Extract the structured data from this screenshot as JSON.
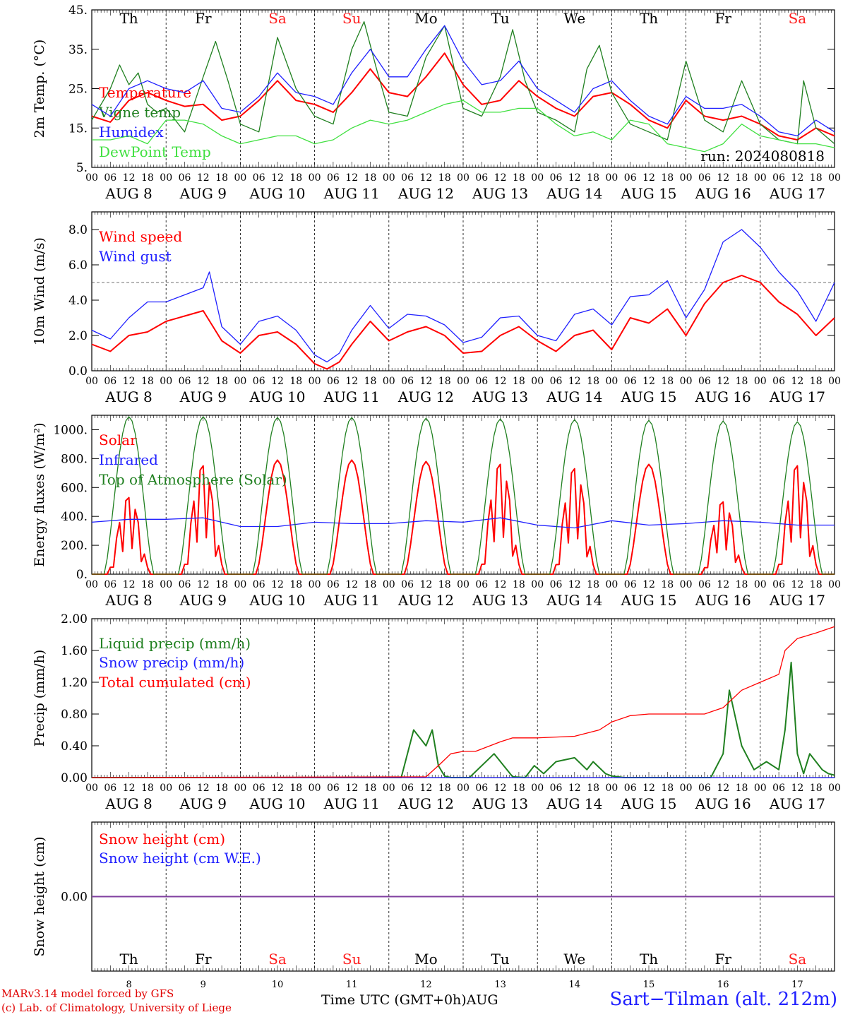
{
  "footer": {
    "credit_line1": "MARv3.14 model forced by GFS",
    "credit_line2": "(c) Lab. of Climatology, University of Liege",
    "time_axis_label": "Time UTC (GMT+0h)AUG",
    "station": "Sart−Tilman (alt. 212m)"
  },
  "run_label": "run: 2024080818",
  "weekdays": [
    "Th",
    "Fr",
    "Sa",
    "Su",
    "Mo",
    "Tu",
    "We",
    "Th",
    "Fr",
    "Sa"
  ],
  "weekend_color": "#ff2020",
  "date_labels": [
    "AUG  8",
    "AUG  9",
    "AUG 10",
    "AUG 11",
    "AUG 12",
    "AUG 13",
    "AUG 14",
    "AUG 15",
    "AUG 16",
    "AUG 17"
  ],
  "hour_ticks": [
    "00",
    "06",
    "12",
    "18"
  ],
  "bottom_days": [
    "8",
    "9",
    "10",
    "11",
    "12",
    "13",
    "14",
    "15",
    "16",
    "17"
  ],
  "colors": {
    "red": "#ff0000",
    "green": "#208020",
    "blue": "#2020ff",
    "lightgreen": "#40e040",
    "purple": "#8040a0"
  },
  "chart_data": [
    {
      "type": "line",
      "id": "temp",
      "ylabel": "2m Temp. (°C)",
      "ylim": [
        5,
        45
      ],
      "ytick_values": [
        5,
        15,
        25,
        35,
        45
      ],
      "ytick_labels": [
        "5.",
        "15.",
        "25.",
        "35.",
        "45."
      ],
      "x_unit": "hours since AUG 8 00 UTC",
      "series": [
        {
          "name": "Temperature",
          "color": "#ff0000",
          "x": [
            0,
            6,
            12,
            18,
            24,
            30,
            36,
            42,
            48,
            54,
            60,
            66,
            72,
            78,
            84,
            90,
            96,
            102,
            108,
            114,
            120,
            126,
            132,
            138,
            144,
            150,
            156,
            162,
            168,
            174,
            180,
            186,
            192,
            198,
            204,
            210,
            216,
            222,
            228,
            234,
            240
          ],
          "y": [
            18,
            16.5,
            22,
            24,
            22,
            20.5,
            21,
            17,
            18,
            22,
            27,
            22,
            21,
            19,
            24,
            30,
            24,
            23,
            28,
            34,
            26,
            21,
            22,
            27,
            23,
            20,
            18,
            23,
            24,
            21,
            17,
            15,
            22,
            18,
            17,
            18,
            16,
            13,
            12,
            15,
            13
          ]
        },
        {
          "name": "Vigne temp",
          "color": "#208020",
          "x": [
            0,
            6,
            9,
            12,
            15,
            18,
            21,
            24,
            30,
            36,
            40,
            44,
            48,
            54,
            60,
            66,
            72,
            78,
            84,
            88,
            92,
            96,
            102,
            108,
            114,
            120,
            126,
            132,
            136,
            140,
            144,
            150,
            156,
            160,
            164,
            168,
            174,
            180,
            186,
            192,
            198,
            204,
            210,
            216,
            222,
            228,
            230,
            234,
            240
          ],
          "y": [
            17,
            25,
            31,
            26,
            29,
            21,
            19,
            20,
            14,
            28,
            37,
            27,
            16,
            14,
            38,
            25,
            18,
            16,
            35,
            42,
            30,
            19,
            18,
            33,
            41,
            20,
            18,
            28,
            40,
            27,
            19,
            17,
            14,
            30,
            36,
            24,
            16,
            14,
            12,
            32,
            17,
            14,
            27,
            16,
            12,
            11,
            27,
            15,
            11
          ]
        },
        {
          "name": "Humidex",
          "color": "#2020ff",
          "x": [
            0,
            6,
            12,
            18,
            24,
            30,
            36,
            42,
            48,
            54,
            60,
            66,
            72,
            78,
            84,
            90,
            96,
            102,
            108,
            114,
            120,
            126,
            132,
            138,
            144,
            150,
            156,
            162,
            168,
            174,
            180,
            186,
            192,
            198,
            204,
            210,
            216,
            222,
            228,
            234,
            240
          ],
          "y": [
            21,
            18,
            25,
            27,
            25,
            24,
            27,
            20,
            19,
            23,
            29,
            24,
            23,
            21,
            29,
            35,
            28,
            28,
            35,
            41,
            32,
            26,
            27,
            32,
            25,
            22,
            19,
            25,
            27,
            22,
            18,
            16,
            23,
            20,
            20,
            21,
            18,
            14,
            13,
            17,
            14
          ]
        },
        {
          "name": "DewPoint Temp",
          "color": "#40e040",
          "x": [
            0,
            6,
            12,
            18,
            24,
            30,
            36,
            42,
            48,
            54,
            60,
            66,
            72,
            78,
            84,
            90,
            96,
            102,
            108,
            114,
            120,
            126,
            132,
            138,
            144,
            150,
            156,
            162,
            168,
            174,
            180,
            186,
            192,
            198,
            204,
            210,
            216,
            222,
            228,
            234,
            240
          ],
          "y": [
            12,
            12,
            13,
            11,
            17,
            17,
            16,
            13,
            11,
            12,
            13,
            13,
            11,
            12,
            15,
            17,
            16,
            17,
            19,
            21,
            22,
            19,
            19,
            20,
            20,
            16,
            13,
            14,
            12,
            17,
            16,
            11,
            10,
            9,
            11,
            16,
            13,
            12,
            11,
            11,
            10
          ]
        }
      ]
    },
    {
      "type": "line",
      "id": "wind",
      "ylabel": "10m Wind (m/s)",
      "ylim": [
        0,
        9
      ],
      "ytick_values": [
        0,
        2,
        4,
        6,
        8
      ],
      "ytick_labels": [
        "0.0",
        "2.0",
        "4.0",
        "6.0",
        "8.0"
      ],
      "reference_line": 5,
      "series": [
        {
          "name": "Wind speed",
          "color": "#ff0000",
          "x": [
            0,
            6,
            12,
            18,
            24,
            30,
            36,
            42,
            48,
            54,
            60,
            66,
            72,
            76,
            80,
            84,
            90,
            96,
            102,
            108,
            114,
            120,
            126,
            132,
            138,
            144,
            150,
            156,
            162,
            168,
            174,
            180,
            186,
            192,
            198,
            204,
            210,
            216,
            222,
            228,
            234,
            240
          ],
          "y": [
            1.5,
            1.1,
            2,
            2.2,
            2.8,
            3.1,
            3.4,
            1.7,
            1,
            2,
            2.2,
            1.5,
            0.4,
            0.1,
            0.5,
            1.5,
            2.8,
            1.7,
            2.2,
            2.5,
            2,
            1,
            1.1,
            2,
            2.5,
            1.7,
            1.1,
            2,
            2.3,
            1.2,
            3,
            2.7,
            3.5,
            2,
            3.8,
            5,
            5.4,
            5,
            3.9,
            3.2,
            2,
            3
          ]
        },
        {
          "name": "Wind gust",
          "color": "#2020ff",
          "x": [
            0,
            6,
            12,
            18,
            24,
            30,
            36,
            38,
            42,
            48,
            54,
            60,
            66,
            72,
            76,
            80,
            84,
            90,
            96,
            102,
            108,
            114,
            120,
            126,
            132,
            138,
            144,
            150,
            156,
            162,
            168,
            174,
            180,
            186,
            192,
            198,
            204,
            210,
            216,
            222,
            228,
            234,
            240
          ],
          "y": [
            2.3,
            1.8,
            3,
            3.9,
            3.9,
            4.3,
            4.7,
            5.6,
            2.5,
            1.5,
            2.8,
            3.1,
            2.3,
            0.9,
            0.5,
            1,
            2.3,
            3.7,
            2.4,
            3.2,
            3.1,
            2.6,
            1.6,
            1.9,
            3,
            3.1,
            2,
            1.7,
            3.2,
            3.5,
            2.6,
            4.2,
            4.3,
            5.1,
            3,
            4.6,
            7.3,
            8,
            7,
            5.6,
            4.5,
            2.8,
            5
          ]
        }
      ]
    },
    {
      "type": "line",
      "id": "energy",
      "ylabel": "Energy fluxes (W/m²)",
      "ylim": [
        0,
        1100
      ],
      "ytick_values": [
        0,
        200,
        400,
        600,
        800,
        1000
      ],
      "ytick_labels": [
        "0.",
        "200.",
        "400.",
        "600.",
        "800.",
        "1000."
      ],
      "series": [
        {
          "name": "Solar",
          "color": "#ff0000",
          "peaks_at_hour_12_of_each_day": [
            530,
            750,
            790,
            790,
            780,
            760,
            730,
            760,
            500,
            750
          ]
        },
        {
          "name": "Infrared",
          "color": "#2020ff",
          "x": [
            0,
            12,
            24,
            36,
            48,
            60,
            72,
            84,
            96,
            108,
            120,
            132,
            144,
            156,
            168,
            180,
            192,
            204,
            216,
            228,
            240
          ],
          "y": [
            360,
            380,
            380,
            390,
            330,
            330,
            360,
            350,
            350,
            370,
            360,
            390,
            340,
            320,
            370,
            340,
            350,
            370,
            360,
            340,
            340
          ]
        },
        {
          "name": "Top of Atmosphere (Solar)",
          "color": "#208020",
          "peaks_at_hour_12_of_each_day": [
            1090,
            1090,
            1085,
            1085,
            1080,
            1075,
            1070,
            1065,
            1060,
            1055
          ]
        }
      ]
    },
    {
      "type": "line",
      "id": "precip",
      "ylabel": "Precip (mm/h)",
      "ylim": [
        0,
        2
      ],
      "ytick_values": [
        0,
        0.4,
        0.8,
        1.2,
        1.6,
        2.0
      ],
      "ytick_labels": [
        "0.00",
        "0.40",
        "0.80",
        "1.20",
        "1.60",
        "2.00"
      ],
      "series": [
        {
          "name": "Liquid precip (mm/h)",
          "color": "#208020",
          "x": [
            0,
            100,
            104,
            108,
            110,
            112,
            114,
            116,
            118,
            122,
            130,
            136,
            140,
            143,
            146,
            150,
            156,
            160,
            162,
            166,
            168,
            170,
            172,
            178,
            180,
            186,
            200,
            204,
            206,
            210,
            214,
            218,
            222,
            224,
            226,
            228,
            230,
            232,
            236,
            238,
            240
          ],
          "y": [
            0,
            0,
            0.6,
            0.4,
            0.6,
            0.15,
            0.02,
            0,
            0,
            0,
            0.3,
            0.01,
            0,
            0.15,
            0.05,
            0.2,
            0.25,
            0.1,
            0.2,
            0.05,
            0.02,
            0.01,
            0,
            0,
            0,
            0,
            0,
            0.3,
            1.1,
            0.4,
            0.1,
            0.2,
            0.1,
            0.6,
            1.45,
            0.3,
            0.05,
            0.3,
            0.1,
            0.05,
            0.03
          ]
        },
        {
          "name": "Snow precip (mm/h)",
          "color": "#2020ff",
          "x": [
            0,
            240
          ],
          "y": [
            0,
            0
          ]
        },
        {
          "name": "Total cumulated (cm)",
          "color": "#ff0000",
          "x": [
            0,
            108,
            112,
            116,
            120,
            124,
            132,
            136,
            144,
            156,
            164,
            168,
            174,
            180,
            192,
            198,
            204,
            210,
            216,
            222,
            224,
            228,
            234,
            240
          ],
          "y": [
            0,
            0.01,
            0.15,
            0.3,
            0.33,
            0.33,
            0.45,
            0.5,
            0.5,
            0.52,
            0.6,
            0.7,
            0.78,
            0.8,
            0.8,
            0.8,
            0.88,
            1.1,
            1.2,
            1.3,
            1.6,
            1.75,
            1.82,
            1.9
          ]
        }
      ]
    },
    {
      "type": "line",
      "id": "snow",
      "ylabel": "Snow height (cm)",
      "ylim": [
        -1,
        1
      ],
      "ytick_values": [
        0
      ],
      "ytick_labels": [
        "0.00"
      ],
      "series": [
        {
          "name": "Snow height (cm)",
          "color": "#ff0000",
          "x": [
            0,
            240
          ],
          "y": [
            0,
            0
          ]
        },
        {
          "name": "Snow height (cm W.E.)",
          "color": "#2020ff",
          "x": [
            0,
            240
          ],
          "y": [
            0,
            0
          ]
        }
      ]
    }
  ]
}
